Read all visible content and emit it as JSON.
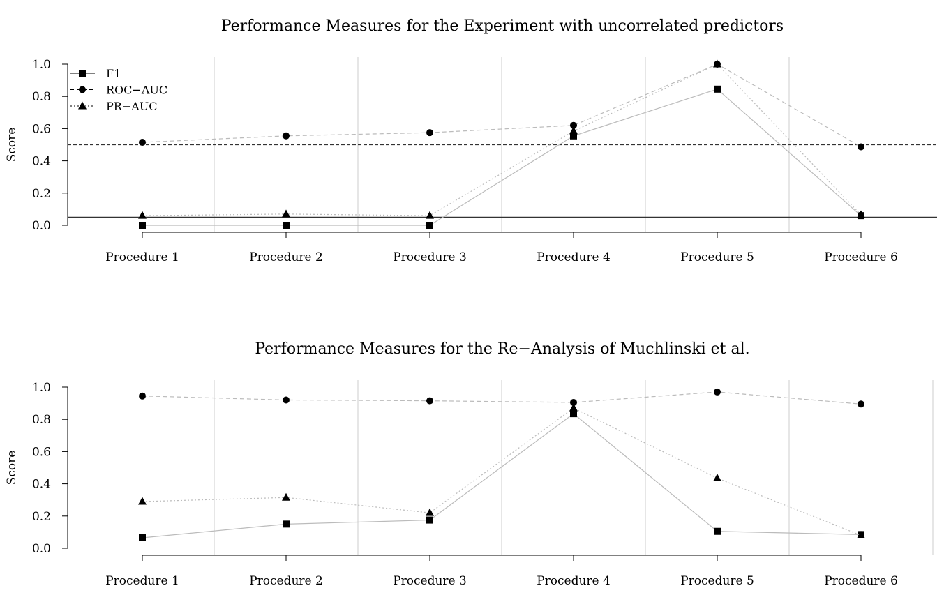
{
  "chart_data": [
    {
      "type": "line",
      "title": "Performance Measures for the Experiment with uncorrelated predictors",
      "ylabel": "Score",
      "xlabel": "",
      "ylim": [
        0,
        1
      ],
      "yticks": [
        "0.0",
        "0.2",
        "0.4",
        "0.6",
        "0.8",
        "1.0"
      ],
      "categories": [
        "Procedure 1",
        "Procedure 2",
        "Procedure 3",
        "Procedure 4",
        "Procedure 5",
        "Procedure 6"
      ],
      "legend": "top-left",
      "reference_lines": [
        {
          "y": 0.5,
          "style": "dashed",
          "color": "#333333"
        },
        {
          "y": 0.05,
          "style": "solid",
          "color": "#333333"
        }
      ],
      "series": [
        {
          "name": "F1",
          "marker": "square",
          "line": "solid",
          "color": "#bbbbbb",
          "values": [
            0.0,
            0.0,
            0.0,
            0.555,
            0.845,
            0.06
          ]
        },
        {
          "name": "ROC−AUC",
          "marker": "circle",
          "line": "dashed",
          "color": "#bbbbbb",
          "values": [
            0.515,
            0.555,
            0.575,
            0.62,
            1.0,
            0.487
          ]
        },
        {
          "name": "PR−AUC",
          "marker": "triangle",
          "line": "dotted",
          "color": "#bbbbbb",
          "values": [
            0.06,
            0.07,
            0.06,
            0.585,
            1.0,
            0.065
          ]
        }
      ]
    },
    {
      "type": "line",
      "title": "Performance Measures for the Re−Analysis of Muchlinski et al.",
      "ylabel": "Score",
      "xlabel": "",
      "ylim": [
        0,
        1
      ],
      "yticks": [
        "0.0",
        "0.2",
        "0.4",
        "0.6",
        "0.8",
        "1.0"
      ],
      "categories": [
        "Procedure 1",
        "Procedure 2",
        "Procedure 3",
        "Procedure 4",
        "Procedure 5",
        "Procedure 6"
      ],
      "series": [
        {
          "marker": "square",
          "line": "solid",
          "color": "#bbbbbb",
          "values": [
            0.065,
            0.15,
            0.175,
            0.835,
            0.105,
            0.085
          ]
        },
        {
          "marker": "circle",
          "line": "dashed",
          "color": "#bbbbbb",
          "values": [
            0.945,
            0.92,
            0.915,
            0.905,
            0.97,
            0.895
          ]
        },
        {
          "marker": "triangle",
          "line": "dotted",
          "color": "#bbbbbb",
          "values": [
            0.29,
            0.315,
            0.22,
            0.87,
            0.435,
            0.08
          ]
        }
      ]
    }
  ]
}
